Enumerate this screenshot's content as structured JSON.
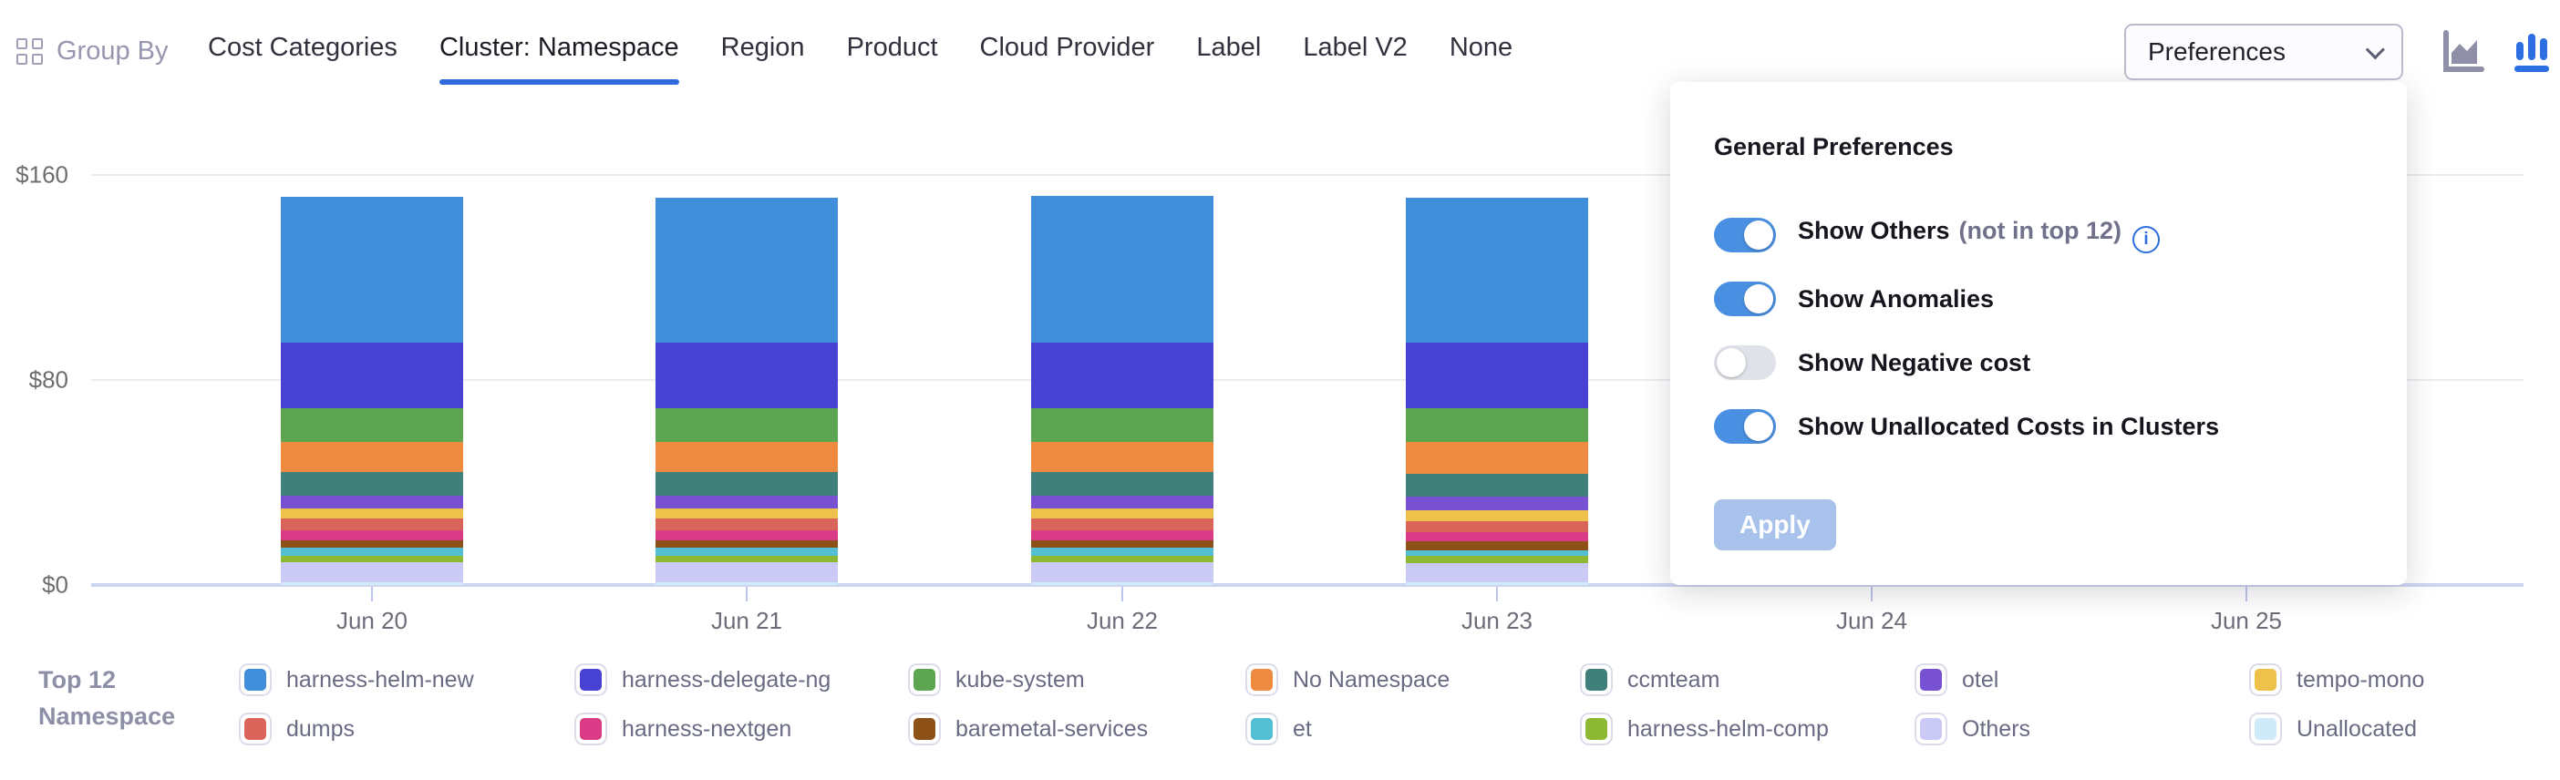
{
  "header": {
    "group_by_label": "Group By",
    "tabs": [
      {
        "label": "Cost Categories",
        "active": false
      },
      {
        "label": "Cluster: Namespace",
        "active": true
      },
      {
        "label": "Region",
        "active": false
      },
      {
        "label": "Product",
        "active": false
      },
      {
        "label": "Cloud Provider",
        "active": false
      },
      {
        "label": "Label",
        "active": false
      },
      {
        "label": "Label V2",
        "active": false
      },
      {
        "label": "None",
        "active": false
      }
    ],
    "preferences_button_label": "Preferences",
    "chart_type_icons": [
      {
        "name": "area-chart-icon",
        "active": false,
        "color": "#8f90a7"
      },
      {
        "name": "bar-chart-icon",
        "active": true,
        "color": "#2b6fe3"
      }
    ]
  },
  "preferences_panel": {
    "title": "General Preferences",
    "toggles": [
      {
        "label": "Show Others",
        "suffix": "(not in top 12)",
        "has_info_icon": true,
        "on": true
      },
      {
        "label": "Show Anomalies",
        "suffix": "",
        "has_info_icon": false,
        "on": true
      },
      {
        "label": "Show Negative cost",
        "suffix": "",
        "has_info_icon": false,
        "on": false
      },
      {
        "label": "Show Unallocated Costs in Clusters",
        "suffix": "",
        "has_info_icon": false,
        "on": true
      }
    ],
    "apply_label": "Apply",
    "apply_enabled": false
  },
  "legend": {
    "title_line1": "Top 12",
    "title_line2": "Namespace"
  },
  "chart_data": {
    "type": "bar",
    "stacked": true,
    "currency": "USD",
    "categories": [
      "Jun 20",
      "Jun 21",
      "Jun 22",
      "Jun 23",
      "Jun 24",
      "Jun 25"
    ],
    "series": [
      {
        "name": "harness-helm-new",
        "color": "#418fdb",
        "values": [
          57,
          56.5,
          57.5,
          56.5,
          0,
          0
        ]
      },
      {
        "name": "harness-delegate-ng",
        "color": "#4842d2",
        "values": [
          25.5,
          25.5,
          25.5,
          25.5,
          0,
          0
        ]
      },
      {
        "name": "kube-system",
        "color": "#5da551",
        "values": [
          13,
          13,
          13,
          13,
          0,
          0
        ]
      },
      {
        "name": "No Namespace",
        "color": "#ee8b41",
        "values": [
          12,
          12,
          12,
          12.5,
          0,
          0
        ]
      },
      {
        "name": "ccmteam",
        "color": "#417f7b",
        "values": [
          9,
          9,
          9,
          9,
          0,
          0
        ]
      },
      {
        "name": "otel",
        "color": "#7751d1",
        "values": [
          5,
          5,
          5,
          5.5,
          0,
          0
        ]
      },
      {
        "name": "tempo-mono",
        "color": "#eec14b",
        "values": [
          4,
          4,
          4,
          4,
          0,
          0
        ]
      },
      {
        "name": "dumps",
        "color": "#d96459",
        "values": [
          4.5,
          4.5,
          4.5,
          4.5,
          0,
          0
        ]
      },
      {
        "name": "harness-nextgen",
        "color": "#da3b86",
        "values": [
          4,
          4,
          4,
          3.5,
          0,
          0
        ]
      },
      {
        "name": "baremetal-services",
        "color": "#8d5016",
        "values": [
          3,
          3,
          3,
          3.5,
          0,
          0
        ]
      },
      {
        "name": "et",
        "color": "#54bed3",
        "values": [
          3,
          3,
          3,
          2,
          0,
          0
        ]
      },
      {
        "name": "harness-helm-comp",
        "color": "#8cb834",
        "values": [
          2.5,
          2.5,
          2.5,
          3,
          0,
          0
        ]
      },
      {
        "name": "Others",
        "color": "#cbc9f5",
        "values": [
          8,
          8,
          8,
          7.5,
          0,
          0
        ]
      },
      {
        "name": "Unallocated",
        "color": "#cfeaf8",
        "values": [
          1,
          1,
          1,
          1,
          0,
          0
        ]
      }
    ],
    "yticks": [
      {
        "label": "$160",
        "value": 160
      },
      {
        "label": "$80",
        "value": 80
      },
      {
        "label": "$0",
        "value": 0
      }
    ],
    "ylim": [
      0,
      160
    ],
    "xlabel": "",
    "ylabel": "",
    "legend_title": "Top 12 Namespace",
    "legend_position": "bottom",
    "grid": true
  }
}
